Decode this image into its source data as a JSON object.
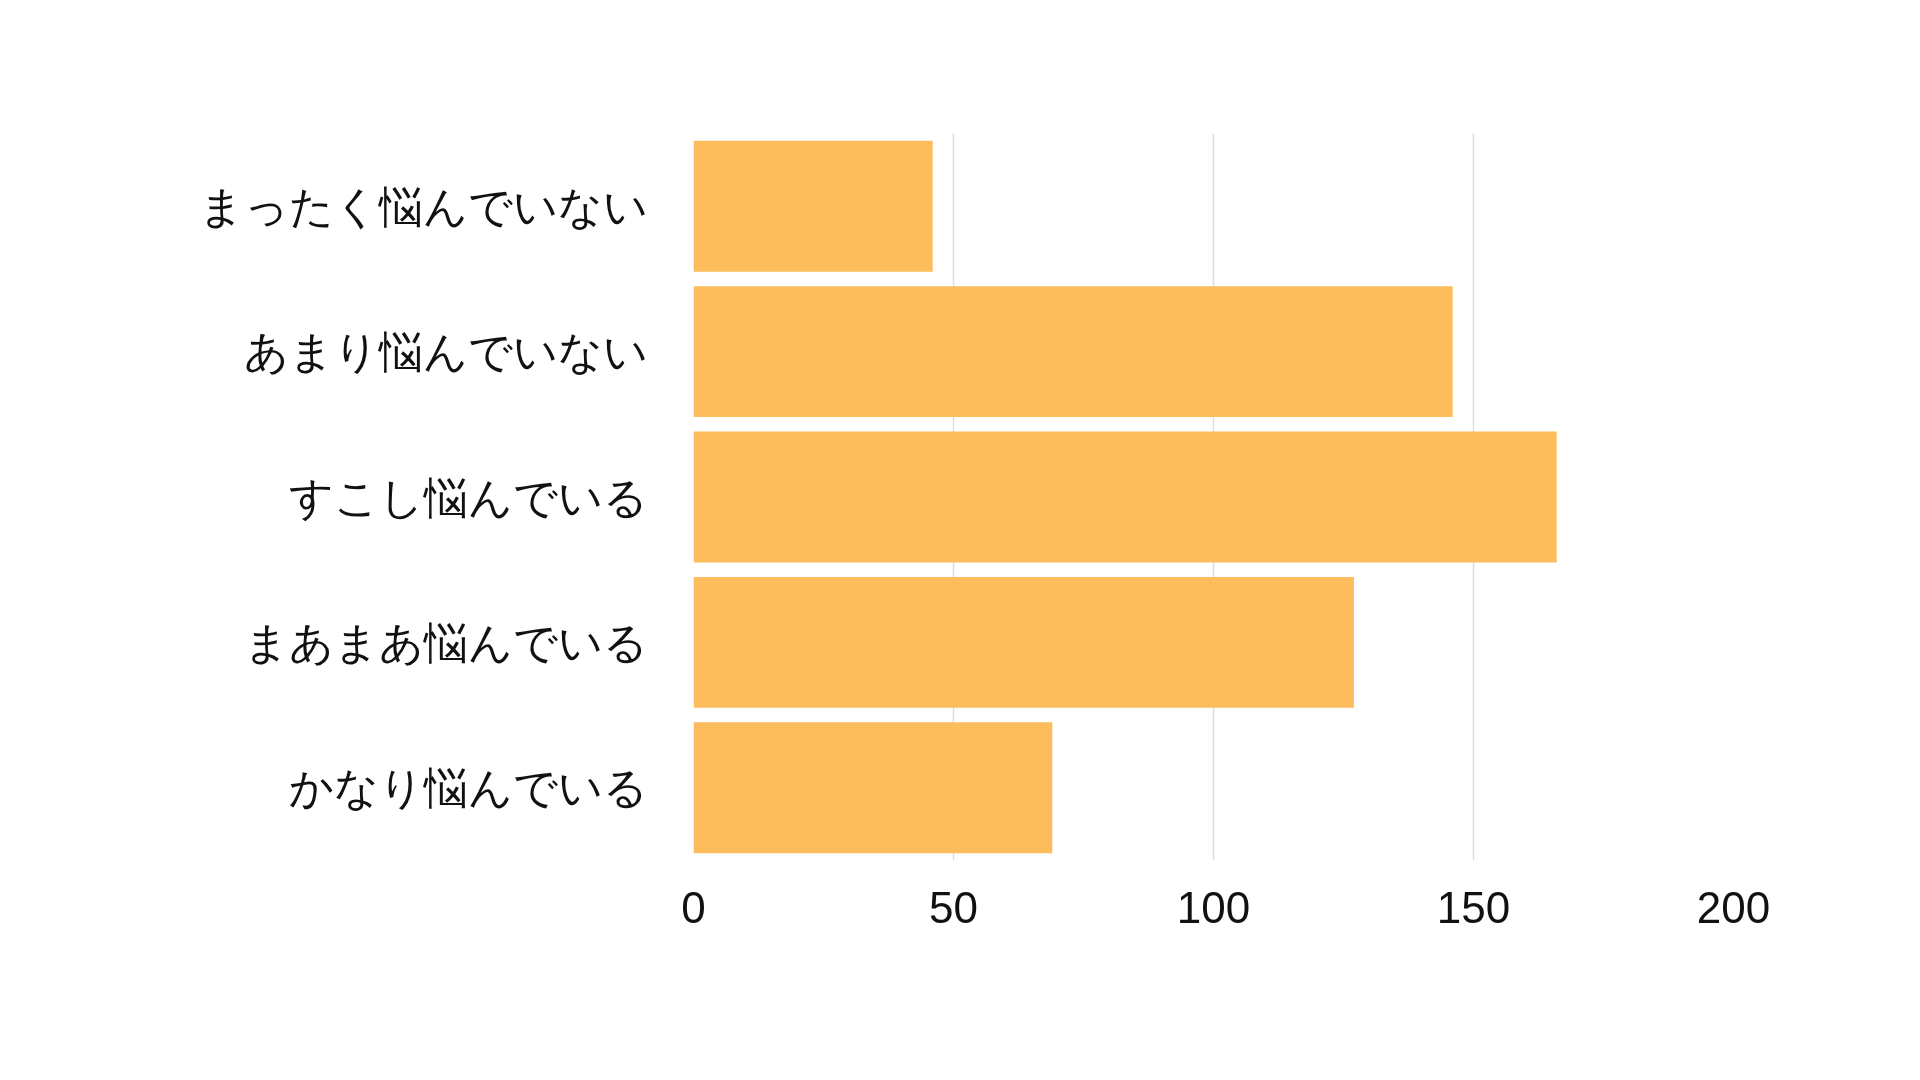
{
  "chart_data": {
    "type": "bar",
    "orientation": "horizontal",
    "categories": [
      "まったく悩んでいない",
      "あまり悩んでいない",
      "すこし悩んでいる",
      "まあまあ悩んでいる",
      "かなり悩んでいる"
    ],
    "values": [
      46,
      146,
      166,
      127,
      69
    ],
    "color": "#fdbd5c",
    "xlim": [
      0,
      200
    ],
    "xticks": [
      0,
      50,
      100,
      150,
      200
    ],
    "grid": "x"
  }
}
